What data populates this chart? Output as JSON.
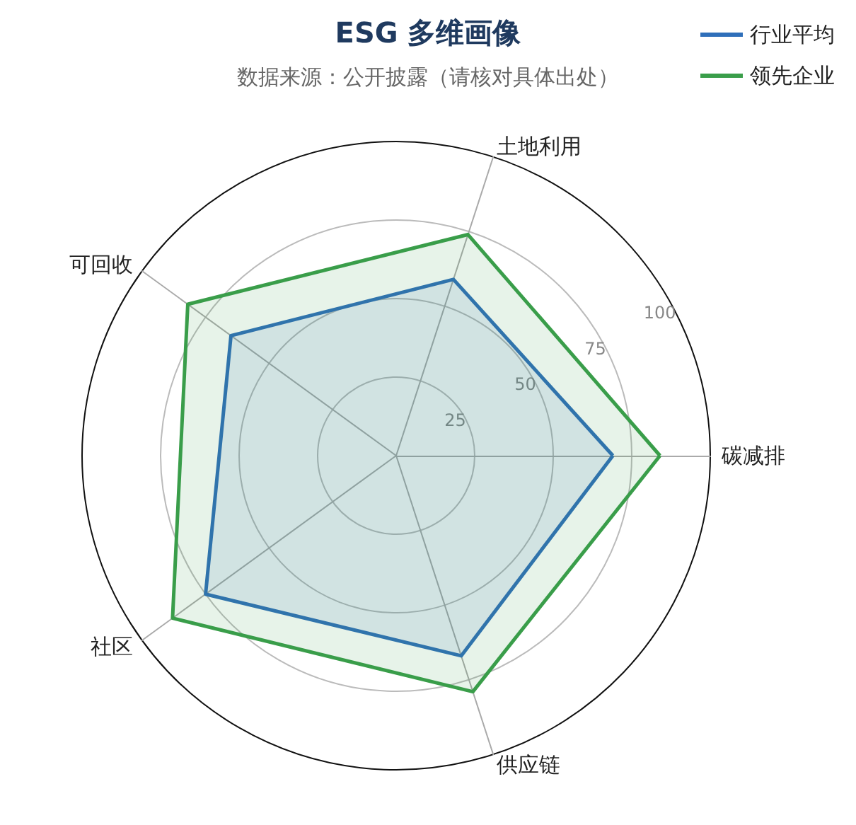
{
  "chart_data": {
    "type": "radar",
    "title": "ESG 多维画像",
    "subtitle": "数据来源：公开披露（请核对具体出处）",
    "categories": [
      "碳减排",
      "供应链",
      "社区",
      "可回收",
      "土地利用"
    ],
    "series": [
      {
        "name": "行业平均",
        "color": "#2f6fba",
        "values": [
          69,
          67,
          75,
          65,
          59
        ]
      },
      {
        "name": "领先企业",
        "color": "#3a9e4a",
        "values": [
          84,
          79,
          88,
          82,
          74
        ]
      }
    ],
    "ylim": [
      0,
      100
    ],
    "yticks": [
      25,
      50,
      75,
      100
    ],
    "legend": "top right",
    "grid": true
  }
}
